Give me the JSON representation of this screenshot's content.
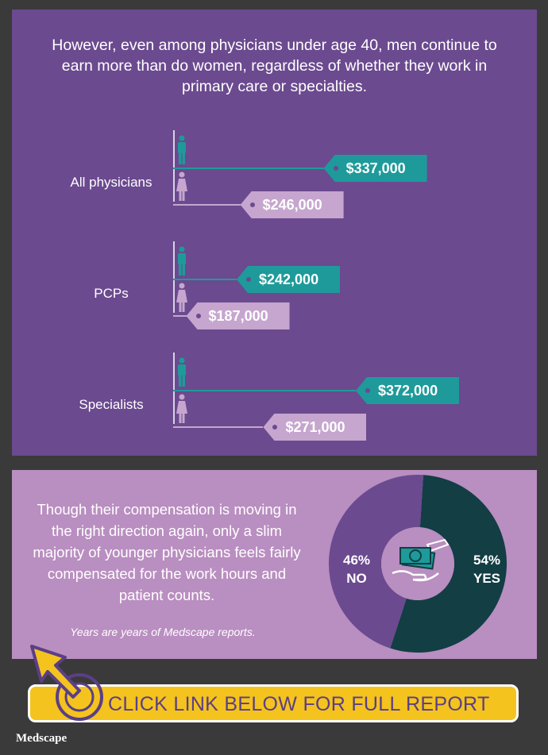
{
  "headline": "However, even among physicians under age 40, men continue to earn more than do women, regardless of whether they work in primary care or specialties.",
  "colors": {
    "men": "#1e9a9a",
    "women": "#c6a6cf",
    "panel": "#6b4a8f",
    "yes": "#123e44",
    "no": "#6b4a8f"
  },
  "chart_data": [
    {
      "type": "bar",
      "categories": [
        "All physicians",
        "PCPs",
        "Specialists"
      ],
      "series": [
        {
          "values": [
            337000,
            242000,
            372000
          ]
        },
        {
          "values": [
            246000,
            187000,
            271000
          ]
        }
      ],
      "value_labels": {
        "men": [
          "$337,000",
          "$242,000",
          "$372,000"
        ],
        "women": [
          "$246,000",
          "$187,000",
          "$271,000"
        ]
      }
    },
    {
      "type": "pie",
      "slices": [
        {
          "label": "YES",
          "value": 54,
          "text": "54%"
        },
        {
          "label": "NO",
          "value": 46,
          "text": "46%"
        }
      ]
    }
  ],
  "bottom": {
    "paragraph": "Though their compensation is moving in the right direction again, only a slim majority of younger physicians feels fairly compensated for the work hours and patient counts.",
    "note": "Years are years of Medscape reports."
  },
  "cta": {
    "label": "CLICK LINK BELOW FOR FULL REPORT"
  },
  "logo": "Medscape"
}
